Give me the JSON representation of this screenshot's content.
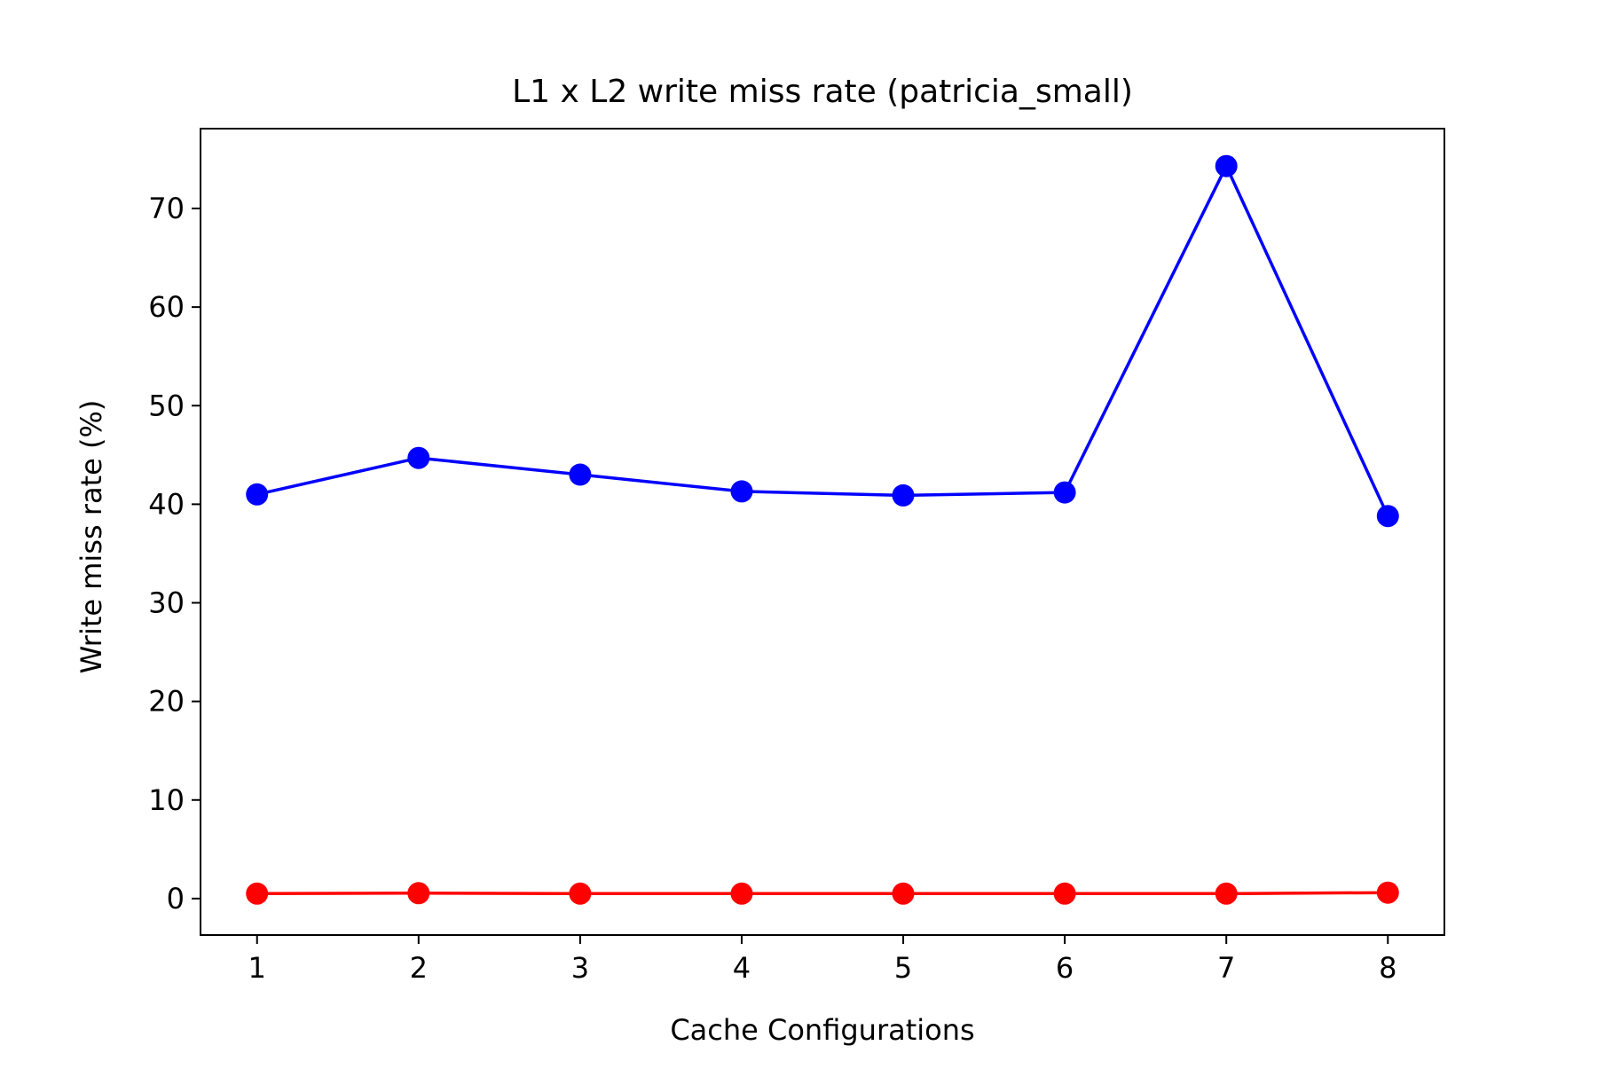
{
  "colors": {
    "series_1": "#0000ff",
    "series_2": "#ff0000",
    "axes": "#000000",
    "background": "#ffffff"
  },
  "chart_data": {
    "type": "line",
    "title": "L1 x L2 write miss rate (patricia_small)",
    "xlabel": "Cache Configurations",
    "ylabel": "Write miss rate (%)",
    "x": [
      1,
      2,
      3,
      4,
      5,
      6,
      7,
      8
    ],
    "x_tick_labels": [
      "1",
      "2",
      "3",
      "4",
      "5",
      "6",
      "7",
      "8"
    ],
    "y_ticks": [
      0,
      10,
      20,
      30,
      40,
      50,
      60,
      70
    ],
    "y_tick_labels": [
      "0",
      "10",
      "20",
      "30",
      "40",
      "50",
      "60",
      "70"
    ],
    "xlim": [
      0.65,
      8.35
    ],
    "ylim": [
      -3.7,
      78.1
    ],
    "grid": false,
    "legend": "none",
    "marker": "circle",
    "series": [
      {
        "color": "#0000ff",
        "values": [
          41.0,
          44.7,
          43.0,
          41.3,
          40.9,
          41.2,
          74.3,
          38.8
        ]
      },
      {
        "color": "#ff0000",
        "values": [
          0.5,
          0.55,
          0.5,
          0.5,
          0.5,
          0.5,
          0.5,
          0.6
        ]
      }
    ]
  }
}
